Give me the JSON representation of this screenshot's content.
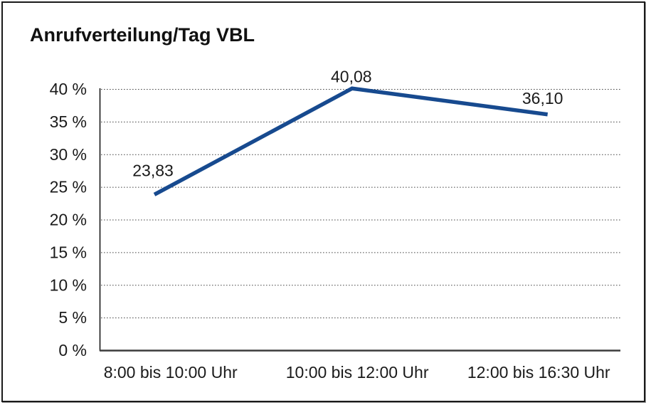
{
  "chart_data": {
    "type": "line",
    "title": "Anrufverteilung/Tag VBL",
    "categories": [
      "8:00 bis 10:00 Uhr",
      "10:00 bis 12:00 Uhr",
      "12:00 bis 16:30 Uhr"
    ],
    "values": [
      23.83,
      40.08,
      36.1
    ],
    "value_labels": [
      "23,83",
      "40,08",
      "36,10"
    ],
    "y_ticks": [
      {
        "value": 0,
        "label": "0 %"
      },
      {
        "value": 5,
        "label": "5 %"
      },
      {
        "value": 10,
        "label": "10 %"
      },
      {
        "value": 15,
        "label": "15 %"
      },
      {
        "value": 20,
        "label": "20 %"
      },
      {
        "value": 25,
        "label": "25 %"
      },
      {
        "value": 30,
        "label": "30 %"
      },
      {
        "value": 35,
        "label": "35 %"
      },
      {
        "value": 40,
        "label": "40 %"
      }
    ],
    "ylim": [
      0,
      40
    ],
    "xlabel": "",
    "ylabel": "",
    "grid": "horizontal-dotted",
    "legend": "none",
    "line_color": "#174a8f",
    "axis_color": "#1a1a1a",
    "x_axis_color": "#3c3c3c",
    "grid_color": "#4a4a4a",
    "text_color": "#1a1a1a"
  }
}
